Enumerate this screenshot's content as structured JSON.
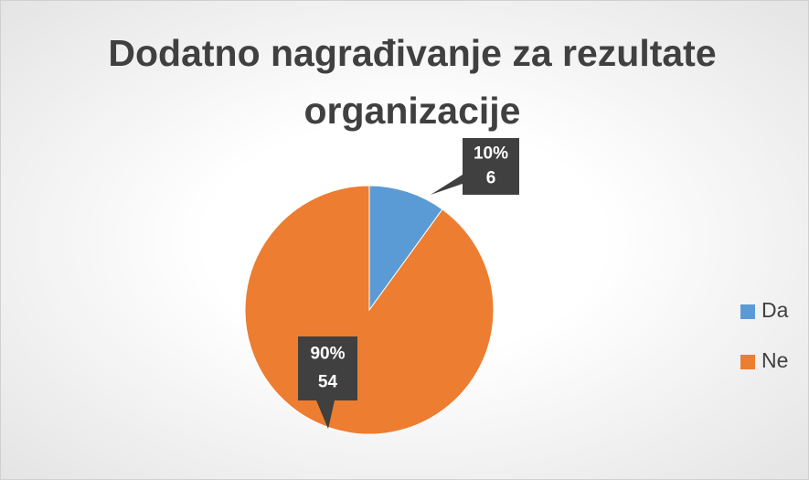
{
  "chart_data": {
    "type": "pie",
    "title": "Dodatno nagrađivanje za rezultate organizacije",
    "categories": [
      "Da",
      "Ne"
    ],
    "values": [
      6,
      54
    ],
    "percent_labels": [
      "10%",
      "90%"
    ],
    "colors": [
      "#5b9bd5",
      "#ed7d31"
    ],
    "legend": "right"
  }
}
